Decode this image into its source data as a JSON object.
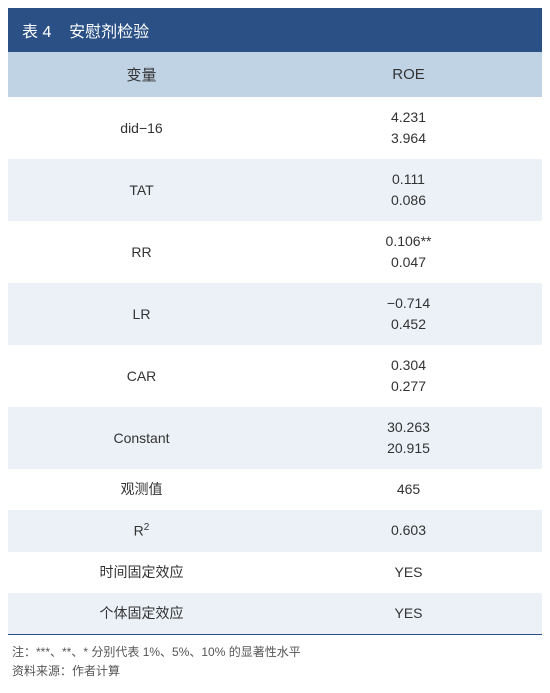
{
  "title_prefix": "表 4",
  "title_text": "安慰剂检验",
  "header": {
    "var": "变量",
    "val": "ROE"
  },
  "rows": [
    {
      "var": "did−16",
      "v1": "4.231",
      "v2": "3.964"
    },
    {
      "var": "TAT",
      "v1": "0.111",
      "v2": "0.086"
    },
    {
      "var": "RR",
      "v1": "0.106**",
      "v2": "0.047"
    },
    {
      "var": "LR",
      "v1": "−0.714",
      "v2": "0.452"
    },
    {
      "var": "CAR",
      "v1": "0.304",
      "v2": "0.277"
    },
    {
      "var": "Constant",
      "v1": "30.263",
      "v2": "20.915"
    }
  ],
  "singles": [
    {
      "var": "观测值",
      "val": "465"
    },
    {
      "var_html": "r2",
      "val": "0.603"
    },
    {
      "var": "时间固定效应",
      "val": "YES"
    },
    {
      "var": "个体固定效应",
      "val": "YES"
    }
  ],
  "r2_label_base": "R",
  "r2_label_sup": "2",
  "footnote1": "注：***、**、* 分别代表 1%、5%、10% 的显著性水平",
  "footnote2": "资料来源：作者计算",
  "colors": {
    "title_bg": "#2a5086",
    "header_bg": "#c0d3e5",
    "row_alt_bg": "#ecf1f7",
    "row_bg": "#ffffff",
    "text": "#333333",
    "foot_text": "#555555",
    "rule": "#2a5086"
  }
}
